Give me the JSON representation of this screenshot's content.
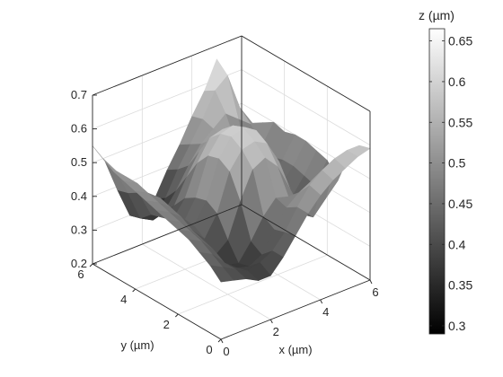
{
  "chart_data": {
    "type": "surface",
    "colormap": "gray",
    "grid": true,
    "x_axis": {
      "label": "x (µm)",
      "lim": [
        0,
        6
      ],
      "ticks": [
        0,
        2,
        4,
        6
      ],
      "tick_labels": [
        "0",
        "2",
        "4",
        "6"
      ]
    },
    "y_axis": {
      "label": "y (µm)",
      "lim": [
        0,
        6
      ],
      "ticks": [
        0,
        2,
        4,
        6
      ],
      "tick_labels": [
        "0",
        "2",
        "4",
        "6"
      ]
    },
    "z_axis": {
      "lim": [
        0.2,
        0.7
      ],
      "ticks": [
        0.2,
        0.3,
        0.4,
        0.5,
        0.6,
        0.7
      ],
      "tick_labels": [
        "0.2",
        "0.3",
        "0.4",
        "0.5",
        "0.6",
        "0.7"
      ]
    },
    "colorbar": {
      "label": "z (µm)",
      "position": "right",
      "lim": [
        0.29,
        0.665
      ],
      "ticks": [
        0.3,
        0.35,
        0.4,
        0.45,
        0.5,
        0.55,
        0.6,
        0.65
      ],
      "tick_labels": [
        "0.3",
        "0.35",
        "0.4",
        "0.45",
        "0.5",
        "0.55",
        "0.6",
        "0.65"
      ]
    },
    "surface": {
      "x": [
        0.0,
        0.5,
        1.0,
        1.5,
        2.0,
        2.5,
        3.0,
        3.5,
        4.0,
        4.5,
        5.0,
        5.5,
        6.0
      ],
      "y": [
        0.0,
        0.5,
        1.0,
        1.5,
        2.0,
        2.5,
        3.0,
        3.5,
        4.0,
        4.5,
        5.0,
        5.5,
        6.0
      ],
      "z": [
        [
          0.37,
          0.36,
          0.35,
          0.33,
          0.33,
          0.37,
          0.42,
          0.47,
          0.51,
          0.54,
          0.56,
          0.58,
          0.59
        ],
        [
          0.4,
          0.38,
          0.36,
          0.34,
          0.35,
          0.37,
          0.41,
          0.47,
          0.52,
          0.55,
          0.57,
          0.58,
          0.58
        ],
        [
          0.42,
          0.4,
          0.36,
          0.33,
          0.32,
          0.34,
          0.4,
          0.45,
          0.48,
          0.5,
          0.52,
          0.53,
          0.53
        ],
        [
          0.44,
          0.42,
          0.38,
          0.32,
          0.31,
          0.36,
          0.42,
          0.46,
          0.45,
          0.4,
          0.36,
          0.4,
          0.44
        ],
        [
          0.45,
          0.43,
          0.39,
          0.33,
          0.36,
          0.46,
          0.54,
          0.56,
          0.52,
          0.44,
          0.35,
          0.42,
          0.48
        ],
        [
          0.46,
          0.44,
          0.4,
          0.36,
          0.42,
          0.53,
          0.58,
          0.59,
          0.57,
          0.5,
          0.38,
          0.43,
          0.49
        ],
        [
          0.47,
          0.45,
          0.42,
          0.38,
          0.44,
          0.55,
          0.6,
          0.61,
          0.59,
          0.52,
          0.4,
          0.44,
          0.5
        ],
        [
          0.48,
          0.46,
          0.43,
          0.37,
          0.43,
          0.54,
          0.59,
          0.6,
          0.58,
          0.51,
          0.39,
          0.44,
          0.5
        ],
        [
          0.49,
          0.47,
          0.44,
          0.36,
          0.41,
          0.5,
          0.56,
          0.57,
          0.55,
          0.48,
          0.37,
          0.43,
          0.49
        ],
        [
          0.5,
          0.48,
          0.43,
          0.35,
          0.37,
          0.44,
          0.5,
          0.52,
          0.51,
          0.47,
          0.4,
          0.44,
          0.5
        ],
        [
          0.51,
          0.48,
          0.42,
          0.34,
          0.33,
          0.38,
          0.44,
          0.49,
          0.52,
          0.55,
          0.52,
          0.49,
          0.48
        ],
        [
          0.53,
          0.48,
          0.4,
          0.31,
          0.29,
          0.34,
          0.41,
          0.47,
          0.53,
          0.6,
          0.63,
          0.52,
          0.46
        ],
        [
          0.55,
          0.49,
          0.39,
          0.3,
          0.28,
          0.32,
          0.39,
          0.45,
          0.52,
          0.58,
          0.66,
          0.5,
          0.44
        ]
      ]
    }
  }
}
